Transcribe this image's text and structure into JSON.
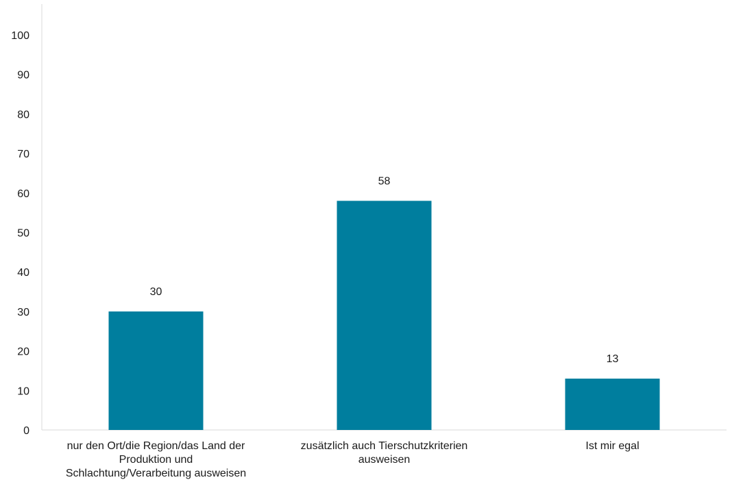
{
  "chart_data": {
    "type": "bar",
    "categories": [
      "nur den Ort/die Region/das Land der\nProduktion und\nSchlachtung/Verarbeitung ausweisen",
      "zusätzlich auch Tierschutzkriterien\nausweisen",
      "Ist mir egal"
    ],
    "values": [
      30,
      58,
      13
    ],
    "yticks": [
      0,
      10,
      20,
      30,
      40,
      50,
      60,
      70,
      80,
      90,
      100
    ],
    "ylim": [
      0,
      100
    ],
    "title": "",
    "xlabel": "",
    "ylabel": "",
    "bar_color": "#007e9e",
    "grid": false,
    "legend": "none"
  }
}
